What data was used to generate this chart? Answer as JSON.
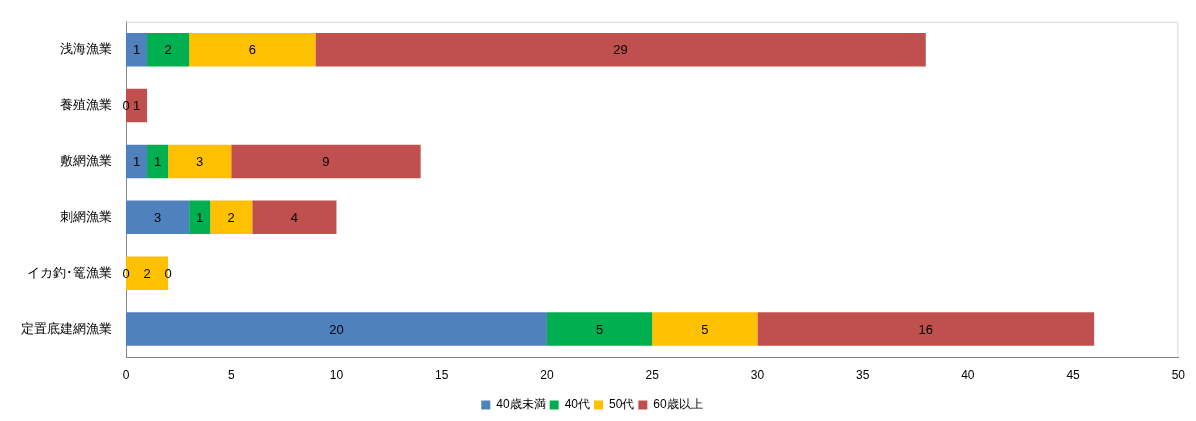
{
  "chart_data": {
    "type": "bar",
    "orientation": "horizontal",
    "stacked": true,
    "categories": [
      "浅海漁業",
      "養殖漁業",
      "敷網漁業",
      "刺網漁業",
      "イカ釣･篭漁業",
      "定置底建網漁業"
    ],
    "series": [
      {
        "name": "40歳未満",
        "color": "#4f81bd",
        "values": [
          1,
          0,
          1,
          3,
          0,
          20
        ],
        "value_labels": [
          "1",
          "0",
          "1",
          "3",
          "0",
          "20"
        ]
      },
      {
        "name": "40代",
        "color": "#00b050",
        "values": [
          2,
          0,
          1,
          1,
          0,
          5
        ],
        "value_labels": [
          "2",
          null,
          "1",
          "1",
          null,
          "5"
        ]
      },
      {
        "name": "50代",
        "color": "#ffc000",
        "values": [
          6,
          0,
          3,
          2,
          2,
          5
        ],
        "value_labels": [
          "6",
          null,
          "3",
          "2",
          "2",
          "5"
        ]
      },
      {
        "name": "60歳以上",
        "color": "#c0504d",
        "values": [
          29,
          1,
          9,
          4,
          0,
          16
        ],
        "value_labels": [
          "29",
          "1",
          "9",
          "4",
          "0",
          "16"
        ]
      }
    ],
    "xlim": [
      0,
      50
    ],
    "xticks": [
      0,
      5,
      10,
      15,
      20,
      25,
      30,
      35,
      40,
      45,
      50
    ],
    "grid": false,
    "legend": "bottom"
  }
}
